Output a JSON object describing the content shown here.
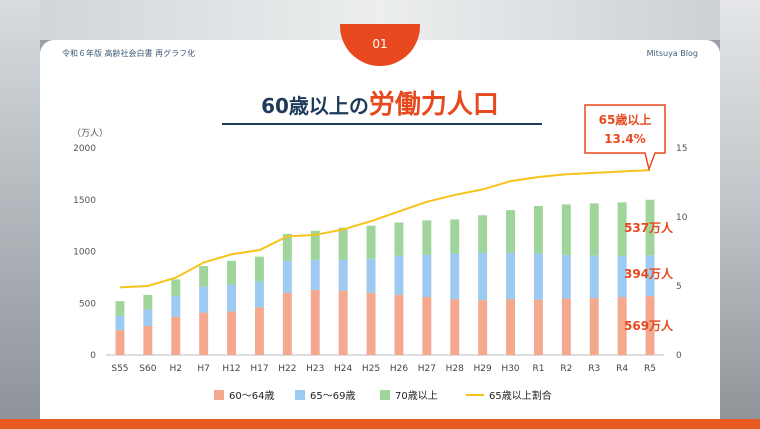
{
  "header": {
    "left_label": "令和６年版 高齢社会白書 再グラフ化",
    "page_number": "01",
    "right_label": "Mitsuya Blog"
  },
  "title": {
    "part1": "60歳以上の",
    "part2": "労働力人口"
  },
  "callout": {
    "line1": "65歳以上",
    "line2": "13.4%"
  },
  "annotations": {
    "age70": "537万人",
    "age65": "394万人",
    "age60": "569万人"
  },
  "colors": {
    "accent": "#e8481e",
    "navy": "#1f3a5a",
    "series_60_64": "#f4a98f",
    "series_65_69": "#9ccaf0",
    "series_70": "#9fd49a",
    "line": "#f7c31a"
  },
  "chart_data": {
    "type": "bar",
    "stacked": true,
    "y_unit_label": "（万人）",
    "categories": [
      "S55",
      "S60",
      "H2",
      "H7",
      "H12",
      "H17",
      "H22",
      "H23",
      "H24",
      "H25",
      "H26",
      "H27",
      "H28",
      "H29",
      "H30",
      "R1",
      "R2",
      "R3",
      "R4",
      "R5"
    ],
    "ylim": [
      0,
      2000
    ],
    "yticks": [
      0,
      500,
      1000,
      1500,
      2000
    ],
    "y2lim": [
      0,
      15
    ],
    "y2ticks": [
      0,
      5,
      10,
      15
    ],
    "grid": false,
    "legend_position": "bottom",
    "series": [
      {
        "name": "60～64歳",
        "values": [
          240,
          280,
          370,
          410,
          420,
          460,
          600,
          630,
          620,
          600,
          580,
          560,
          540,
          530,
          540,
          535,
          545,
          550,
          560,
          569
        ]
      },
      {
        "name": "65～69歳",
        "values": [
          140,
          160,
          200,
          250,
          260,
          250,
          310,
          290,
          300,
          330,
          380,
          410,
          440,
          460,
          450,
          445,
          420,
          410,
          395,
          394
        ]
      },
      {
        "name": "70歳以上",
        "values": [
          140,
          140,
          160,
          200,
          230,
          240,
          260,
          280,
          310,
          320,
          320,
          330,
          330,
          360,
          410,
          460,
          490,
          505,
          520,
          537
        ]
      }
    ],
    "line_series": {
      "name": "65歳以上割合",
      "axis": "right",
      "values": [
        4.9,
        5.0,
        5.6,
        6.7,
        7.3,
        7.6,
        8.6,
        8.7,
        9.1,
        9.7,
        10.4,
        11.1,
        11.6,
        12.0,
        12.6,
        12.9,
        13.1,
        13.2,
        13.3,
        13.4
      ]
    }
  }
}
